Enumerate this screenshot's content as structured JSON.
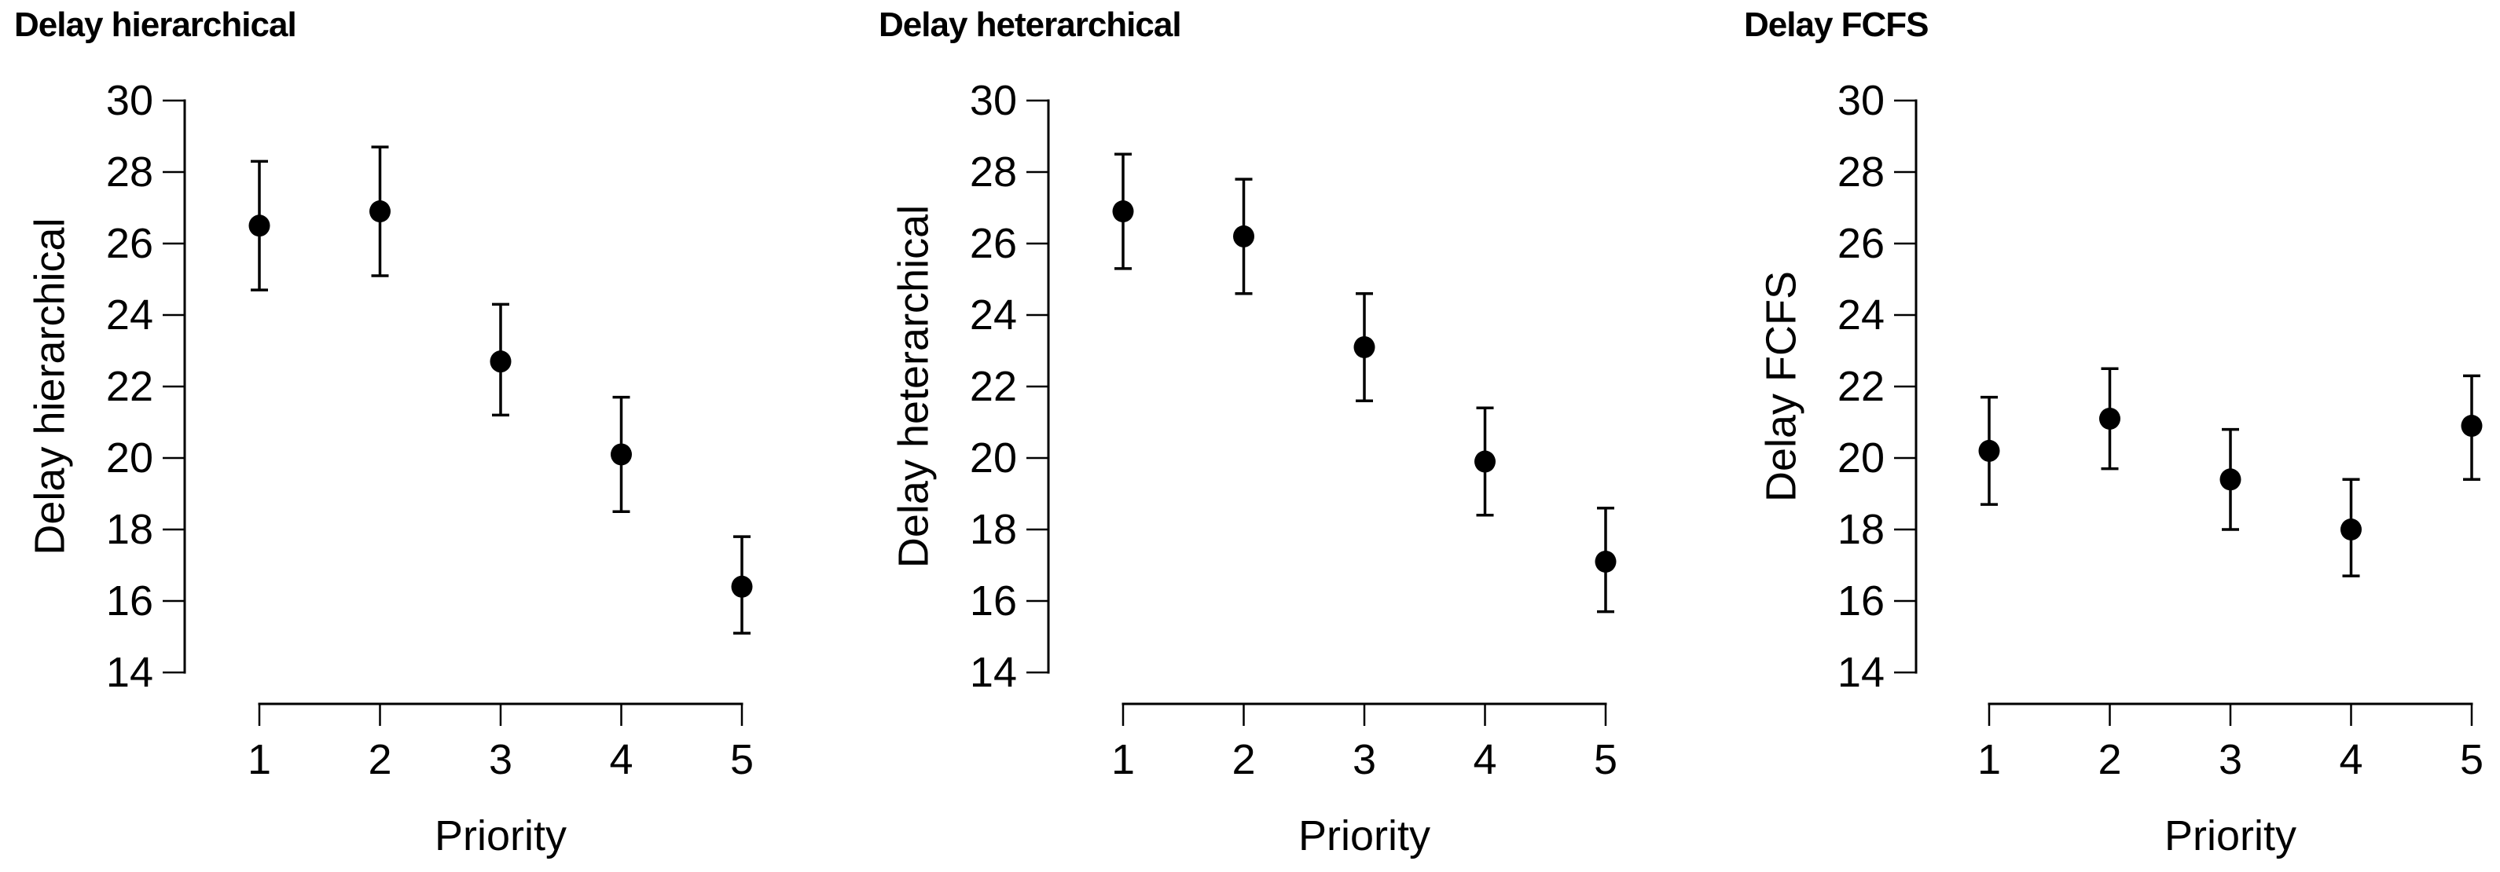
{
  "figure": {
    "background": "#ffffff",
    "ink_color": "#000000",
    "marker": "filled-circle",
    "error_bars": true,
    "grid": false,
    "legend": "none"
  },
  "chart_data": [
    {
      "type": "scatter",
      "title": "Delay hierarchical",
      "xlabel": "Priority",
      "ylabel": "Delay hierarchical",
      "x": [
        1,
        2,
        3,
        4,
        5
      ],
      "x_tick_labels": [
        "1",
        "2",
        "3",
        "4",
        "5"
      ],
      "values": [
        26.5,
        26.9,
        22.7,
        20.1,
        16.4
      ],
      "error_low": [
        24.7,
        25.1,
        21.2,
        18.5,
        15.1
      ],
      "error_high": [
        28.3,
        28.7,
        24.3,
        21.7,
        17.8
      ],
      "y_ticks": [
        30,
        28,
        26,
        24,
        22,
        20,
        18,
        16,
        14
      ],
      "ylim": [
        14,
        30
      ],
      "xlim": [
        1,
        5
      ]
    },
    {
      "type": "scatter",
      "title": "Delay heterarchical",
      "xlabel": "Priority",
      "ylabel": "Delay heterarchical",
      "x": [
        1,
        2,
        3,
        4,
        5
      ],
      "x_tick_labels": [
        "1",
        "2",
        "3",
        "4",
        "5"
      ],
      "values": [
        26.9,
        26.2,
        23.1,
        19.9,
        17.1
      ],
      "error_low": [
        25.3,
        24.6,
        21.6,
        18.4,
        15.7
      ],
      "error_high": [
        28.5,
        27.8,
        24.6,
        21.4,
        18.6
      ],
      "y_ticks": [
        30,
        28,
        26,
        24,
        22,
        20,
        18,
        16,
        14
      ],
      "ylim": [
        14,
        30
      ],
      "xlim": [
        1,
        5
      ]
    },
    {
      "type": "scatter",
      "title": "Delay FCFS",
      "xlabel": "Priority",
      "ylabel": "Delay FCFS",
      "x": [
        1,
        2,
        3,
        4,
        5
      ],
      "x_tick_labels": [
        "1",
        "2",
        "3",
        "4",
        "5"
      ],
      "values": [
        20.2,
        21.1,
        19.4,
        18.0,
        20.9
      ],
      "error_low": [
        18.7,
        19.7,
        18.0,
        16.7,
        19.4
      ],
      "error_high": [
        21.7,
        22.5,
        20.8,
        19.4,
        22.3
      ],
      "y_ticks": [
        30,
        28,
        26,
        24,
        22,
        20,
        18,
        16,
        14
      ],
      "ylim": [
        14,
        30
      ],
      "xlim": [
        1,
        5
      ]
    }
  ]
}
